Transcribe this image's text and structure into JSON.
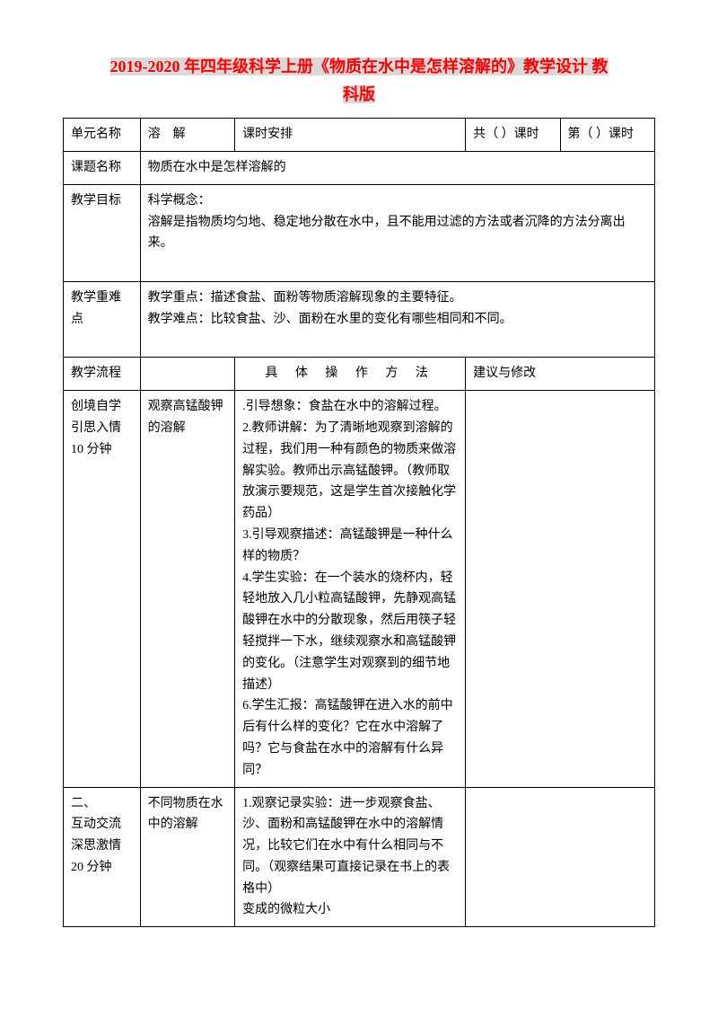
{
  "title": {
    "line1": "2019-2020 年四年级科学上册《物质在水中是怎样溶解的》教学设计 教",
    "line2": "科版"
  },
  "row1": {
    "label": "单元名称",
    "value": "溶　解",
    "schedule_label": "课时安排",
    "total": "共（ ）课时",
    "current": "第（ ）课时"
  },
  "row2": {
    "label": "课题名称",
    "value": "物质在水中是怎样溶解的"
  },
  "row3": {
    "label": "教学目标",
    "concept_label": "科学概念：",
    "concept_text": "溶解是指物质均匀地、稳定地分散在水中，且不能用过滤的方法或者沉降的方法分离出来。"
  },
  "row4": {
    "label": "教学重难点",
    "key": "教学重点：描述食盐、面粉等物质溶解现象的主要特征。",
    "difficult": "教学难点：比较食盐、沙、面粉在水里的变化有哪些相同和不同。"
  },
  "row5": {
    "label": "教学流程",
    "method_header": "具 体 操 作 方 法",
    "suggest_header": "建议与修改"
  },
  "row6": {
    "label_l1": "创境自学",
    "label_l2": "引思入情",
    "label_l3": "10 分钟",
    "sub": "观察高锰酸钾的溶解",
    "p1": ".引导想象：食盐在水中的溶解过程。",
    "p2": "2.教师讲解：为了清晰地观察到溶解的过程，我们用一种有颜色的物质来做溶解实验。教师出示高锰酸钾。（教师取放演示要规范，这是学生首次接触化学药品）",
    "p3": "3.引导观察描述：高锰酸钾是一种什么样的物质？",
    "p4": "4.学生实验：在一个装水的烧杯内，轻轻地放入几小粒高锰酸钾，先静观高锰酸钾在水中的分散现象，然后用筷子轻轻搅拌一下水，继续观察水和高锰酸钾的变化。（注意学生对观察到的细节地描述）",
    "p6": "6.学生汇报：高锰酸钾在进入水的前中后有什么样的变化？它在水中溶解了吗？它与食盐在水中的溶解有什么异同？"
  },
  "row7": {
    "label_l1": "二、",
    "label_l2": "互动交流",
    "label_l3": "深思激情",
    "label_l4": "20 分钟",
    "sub": "不同物质在水中的溶解",
    "p1": "1.观察记录实验：进一步观察食盐、沙、面粉和高锰酸钾在水中的溶解情况，比较它们在水中有什么相同与不同。（观察结果可直接记录在书上的表格中）",
    "p2": "变成的微粒大小"
  }
}
